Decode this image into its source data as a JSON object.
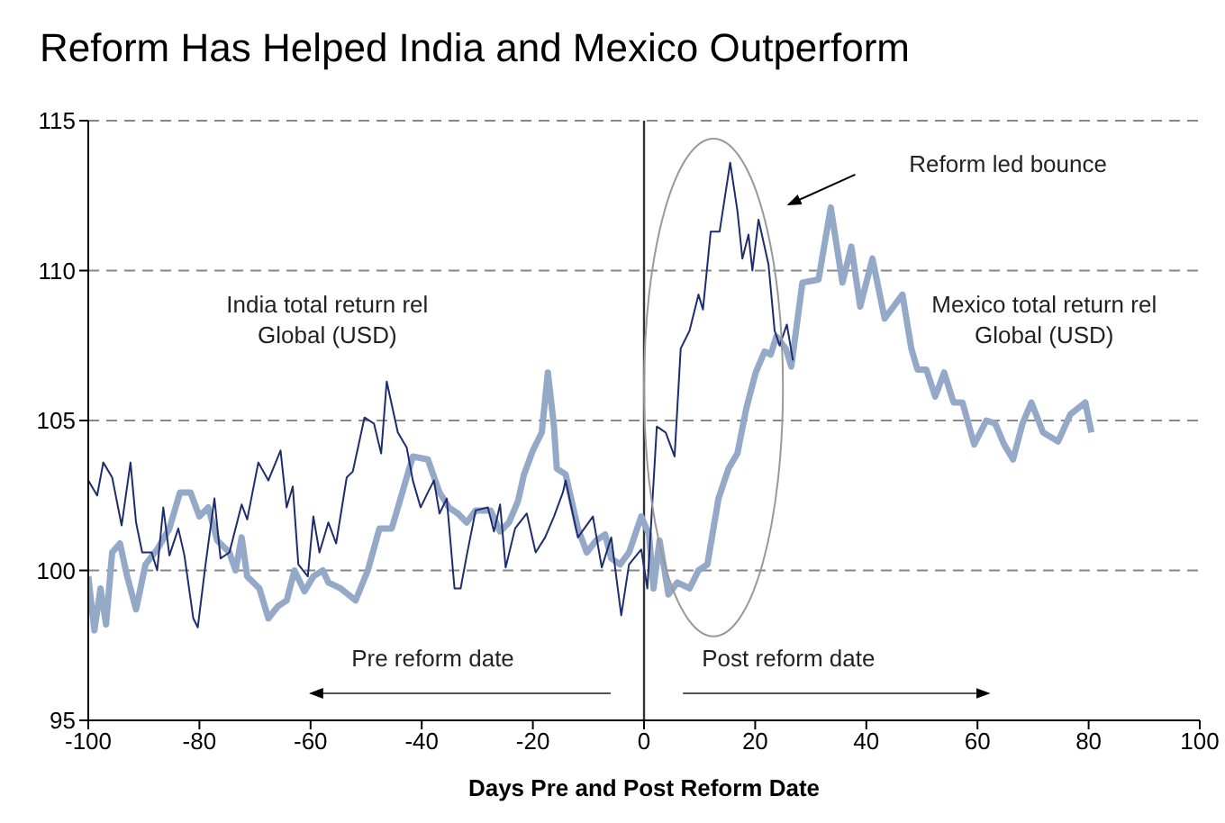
{
  "chart_data": {
    "type": "line",
    "title": "Reform Has Helped India and Mexico Outperform",
    "xlabel": "Days Pre and Post Reform Date",
    "xlim": [
      -100,
      100
    ],
    "xticks": [
      -100,
      -80,
      -60,
      -40,
      -20,
      0,
      20,
      40,
      60,
      80,
      100
    ],
    "ylim": [
      95,
      115
    ],
    "yticks": [
      95,
      100,
      105,
      110,
      115
    ],
    "grid": "y",
    "marker": "none",
    "ref_lines": [
      {
        "axis": "x",
        "value": 0,
        "color": "#333333"
      }
    ],
    "annotations": [
      "Reform led bounce",
      "Pre reform date",
      "Post reform date"
    ],
    "series": [
      {
        "name": "India total return rel Global (USD)",
        "color": "#1f2d6e",
        "line_style": "solid",
        "x": [
          -100,
          -98.4,
          -97.3,
          -95.7,
          -94,
          -92.4,
          -91.4,
          -90.3,
          -88.6,
          -87.6,
          -86.5,
          -85.4,
          -83.8,
          -82.7,
          -81.1,
          -80.3,
          -78.9,
          -77.3,
          -76.2,
          -74.6,
          -72.4,
          -71.4,
          -69.4,
          -67.6,
          -65.4,
          -64.3,
          -63.2,
          -62.2,
          -60.5,
          -59.5,
          -58.4,
          -56.8,
          -55.4,
          -53.5,
          -52.4,
          -50.3,
          -48.6,
          -47.3,
          -46.3,
          -44.3,
          -42.7,
          -41.6,
          -40.2,
          -38.9,
          -37.8,
          -36.8,
          -35.5,
          -34.1,
          -33,
          -31.9,
          -30.3,
          -28.1,
          -27,
          -25.9,
          -24.9,
          -23.2,
          -21.1,
          -19.5,
          -17.8,
          -16.2,
          -14.6,
          -14.1,
          -11.9,
          -9.2,
          -7.6,
          -5.9,
          -4.1,
          -2.7,
          -0.5,
          0.6,
          2.3,
          3.9,
          5.5,
          6.6,
          8.2,
          9.8,
          10.6,
          12,
          13.6,
          15.5,
          16.8,
          17.7,
          18.8,
          19.5,
          20.6,
          22.4,
          23.5,
          24.4,
          25.7,
          26.8
        ],
        "values": [
          103,
          102.5,
          103.6,
          103.1,
          101.5,
          103.6,
          101.6,
          100.6,
          100.6,
          100,
          102.1,
          100.5,
          101.4,
          100.5,
          98.4,
          98.1,
          100.2,
          102.4,
          100.4,
          100.6,
          102.2,
          101.7,
          103.6,
          103,
          104,
          102.1,
          102.8,
          100.2,
          99.8,
          101.8,
          100.6,
          101.6,
          100.9,
          103.1,
          103.3,
          105.1,
          104.9,
          103.9,
          106.3,
          104.6,
          104.1,
          103,
          102.1,
          102.6,
          103,
          101.9,
          102.4,
          99.4,
          99.4,
          100.5,
          102,
          102.1,
          101.3,
          102.2,
          100.1,
          101.4,
          101.9,
          100.6,
          101.1,
          101.8,
          102.6,
          103,
          101.1,
          101.8,
          100.1,
          101.1,
          98.5,
          100.2,
          100.7,
          99.4,
          104.8,
          104.6,
          103.8,
          107.4,
          108,
          109.2,
          108.7,
          111.3,
          111.3,
          113.6,
          112,
          110.4,
          111.2,
          110,
          111.7,
          110.2,
          108,
          107.5,
          108.2,
          107
        ]
      },
      {
        "name": "Mexico total return rel Global (USD)",
        "color": "#94a8c8",
        "line_style": "solid",
        "x": [
          -100,
          -98.9,
          -97.8,
          -96.8,
          -95.7,
          -94.3,
          -93,
          -91.4,
          -89.7,
          -87.6,
          -85.4,
          -83.5,
          -81.6,
          -80,
          -78.4,
          -76.8,
          -74.6,
          -73.5,
          -72.4,
          -71.4,
          -69.2,
          -67.6,
          -65.9,
          -64.3,
          -62.9,
          -61.1,
          -59.5,
          -57.8,
          -56.8,
          -54.6,
          -51.9,
          -49.7,
          -47.6,
          -45.4,
          -43.8,
          -41.6,
          -38.9,
          -36.8,
          -35.1,
          -33.5,
          -31.9,
          -30.3,
          -27.6,
          -25.9,
          -24.3,
          -22.7,
          -21.6,
          -20,
          -18.4,
          -17.3,
          -16.2,
          -15.7,
          -14.1,
          -11.9,
          -10.3,
          -8.6,
          -7,
          -5.9,
          -4.3,
          -2.7,
          -0.5,
          0.9,
          1.7,
          2.8,
          4.4,
          6,
          8.2,
          9.8,
          11.4,
          13.4,
          15.2,
          16.8,
          18.4,
          20.1,
          21.7,
          22.8,
          23.8,
          25.5,
          26.5,
          28.5,
          31.4,
          33.6,
          35.7,
          37.3,
          38.9,
          41.1,
          43.3,
          46.5,
          48.1,
          49.2,
          50.8,
          52.4,
          54,
          55.7,
          57.3,
          59.4,
          61.6,
          63.2,
          64.8,
          66.4,
          68.1,
          69.7,
          71.8,
          74.5,
          76.7,
          79.4,
          80.5
        ],
        "values": [
          99.8,
          98,
          99.4,
          98.2,
          100.6,
          100.9,
          99.8,
          98.7,
          100.2,
          100.7,
          101.4,
          102.6,
          102.6,
          101.8,
          102.1,
          101,
          100.6,
          100,
          101.1,
          99.8,
          99.4,
          98.4,
          98.8,
          99,
          100,
          99.3,
          99.8,
          100,
          99.6,
          99.4,
          99,
          100,
          101.4,
          101.4,
          102.4,
          103.8,
          103.7,
          102.6,
          102.1,
          101.9,
          101.6,
          102,
          102,
          101.3,
          101.6,
          102.3,
          103.2,
          104,
          104.6,
          106.6,
          104.8,
          103.4,
          103.2,
          101.4,
          100.6,
          101,
          101.2,
          100.4,
          100.2,
          100.6,
          101.8,
          101.2,
          99.4,
          101,
          99.2,
          99.6,
          99.4,
          100,
          100.2,
          102.4,
          103.4,
          103.9,
          105.4,
          106.6,
          107.3,
          107.2,
          107.8,
          107.4,
          106.8,
          109.6,
          109.7,
          112.1,
          109.6,
          110.8,
          108.8,
          110.4,
          108.4,
          109.2,
          107.4,
          106.7,
          106.7,
          105.8,
          106.6,
          105.6,
          105.6,
          104.2,
          105,
          104.9,
          104.2,
          103.7,
          104.9,
          105.6,
          104.6,
          104.3,
          105.2,
          105.6,
          104.6
        ]
      }
    ]
  }
}
